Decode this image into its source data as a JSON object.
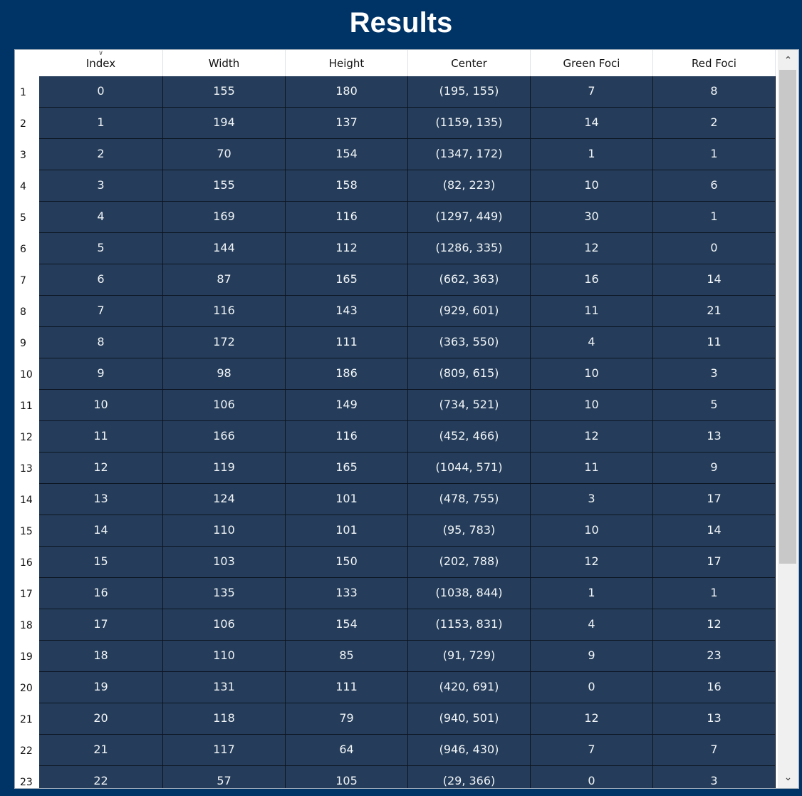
{
  "title": "Results",
  "table": {
    "columns": [
      "Index",
      "Width",
      "Height",
      "Center",
      "Green Foci",
      "Red Foci"
    ],
    "sorted_column": "Index",
    "rows": [
      {
        "num": "1",
        "cells": [
          "0",
          "155",
          "180",
          "(195, 155)",
          "7",
          "8"
        ]
      },
      {
        "num": "2",
        "cells": [
          "1",
          "194",
          "137",
          "(1159, 135)",
          "14",
          "2"
        ]
      },
      {
        "num": "3",
        "cells": [
          "2",
          "70",
          "154",
          "(1347, 172)",
          "1",
          "1"
        ]
      },
      {
        "num": "4",
        "cells": [
          "3",
          "155",
          "158",
          "(82, 223)",
          "10",
          "6"
        ]
      },
      {
        "num": "5",
        "cells": [
          "4",
          "169",
          "116",
          "(1297, 449)",
          "30",
          "1"
        ]
      },
      {
        "num": "6",
        "cells": [
          "5",
          "144",
          "112",
          "(1286, 335)",
          "12",
          "0"
        ]
      },
      {
        "num": "7",
        "cells": [
          "6",
          "87",
          "165",
          "(662, 363)",
          "16",
          "14"
        ]
      },
      {
        "num": "8",
        "cells": [
          "7",
          "116",
          "143",
          "(929, 601)",
          "11",
          "21"
        ]
      },
      {
        "num": "9",
        "cells": [
          "8",
          "172",
          "111",
          "(363, 550)",
          "4",
          "11"
        ]
      },
      {
        "num": "10",
        "cells": [
          "9",
          "98",
          "186",
          "(809, 615)",
          "10",
          "3"
        ]
      },
      {
        "num": "11",
        "cells": [
          "10",
          "106",
          "149",
          "(734, 521)",
          "10",
          "5"
        ]
      },
      {
        "num": "12",
        "cells": [
          "11",
          "166",
          "116",
          "(452, 466)",
          "12",
          "13"
        ]
      },
      {
        "num": "13",
        "cells": [
          "12",
          "119",
          "165",
          "(1044, 571)",
          "11",
          "9"
        ]
      },
      {
        "num": "14",
        "cells": [
          "13",
          "124",
          "101",
          "(478, 755)",
          "3",
          "17"
        ]
      },
      {
        "num": "15",
        "cells": [
          "14",
          "110",
          "101",
          "(95, 783)",
          "10",
          "14"
        ]
      },
      {
        "num": "16",
        "cells": [
          "15",
          "103",
          "150",
          "(202, 788)",
          "12",
          "17"
        ]
      },
      {
        "num": "17",
        "cells": [
          "16",
          "135",
          "133",
          "(1038, 844)",
          "1",
          "1"
        ]
      },
      {
        "num": "18",
        "cells": [
          "17",
          "106",
          "154",
          "(1153, 831)",
          "4",
          "12"
        ]
      },
      {
        "num": "19",
        "cells": [
          "18",
          "110",
          "85",
          "(91, 729)",
          "9",
          "23"
        ]
      },
      {
        "num": "20",
        "cells": [
          "19",
          "131",
          "111",
          "(420, 691)",
          "0",
          "16"
        ]
      },
      {
        "num": "21",
        "cells": [
          "20",
          "118",
          "79",
          "(940, 501)",
          "12",
          "13"
        ]
      },
      {
        "num": "22",
        "cells": [
          "21",
          "117",
          "64",
          "(946, 430)",
          "7",
          "7"
        ]
      },
      {
        "num": "23",
        "cells": [
          "22",
          "57",
          "105",
          "(29, 366)",
          "0",
          "3"
        ]
      }
    ]
  },
  "scrollbar": {
    "up_icon": "chevron-up-icon",
    "down_icon": "chevron-down-icon"
  },
  "colors": {
    "background": "#003366",
    "cell": "#253d5a",
    "cell_text": "#f2f5f8"
  }
}
